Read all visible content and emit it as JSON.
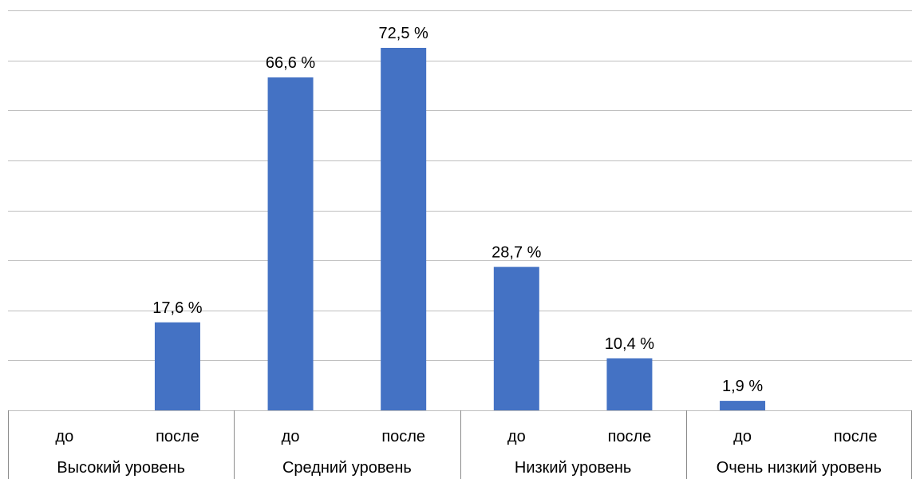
{
  "chart_data": {
    "type": "bar",
    "grid": true,
    "legend": "none",
    "bar_color": "#4472C4",
    "groups": [
      {
        "label": "Высокий уровень",
        "subs": [
          "до",
          "после"
        ],
        "values": [
          0,
          17.6
        ],
        "labels": [
          "",
          "17,6 %"
        ]
      },
      {
        "label": "Средний уровень",
        "subs": [
          "до",
          "после"
        ],
        "values": [
          66.6,
          72.5
        ],
        "labels": [
          "66,6 %",
          "72,5 %"
        ]
      },
      {
        "label": "Низкий уровень",
        "subs": [
          "до",
          "после"
        ],
        "values": [
          28.7,
          10.4
        ],
        "labels": [
          "28,7 %",
          "10,4 %"
        ]
      },
      {
        "label": "Очень низкий уровень",
        "subs": [
          "до",
          "после"
        ],
        "values": [
          1.9,
          0
        ],
        "labels": [
          "1,9 %",
          ""
        ]
      }
    ],
    "ylim": [
      0,
      80
    ]
  }
}
